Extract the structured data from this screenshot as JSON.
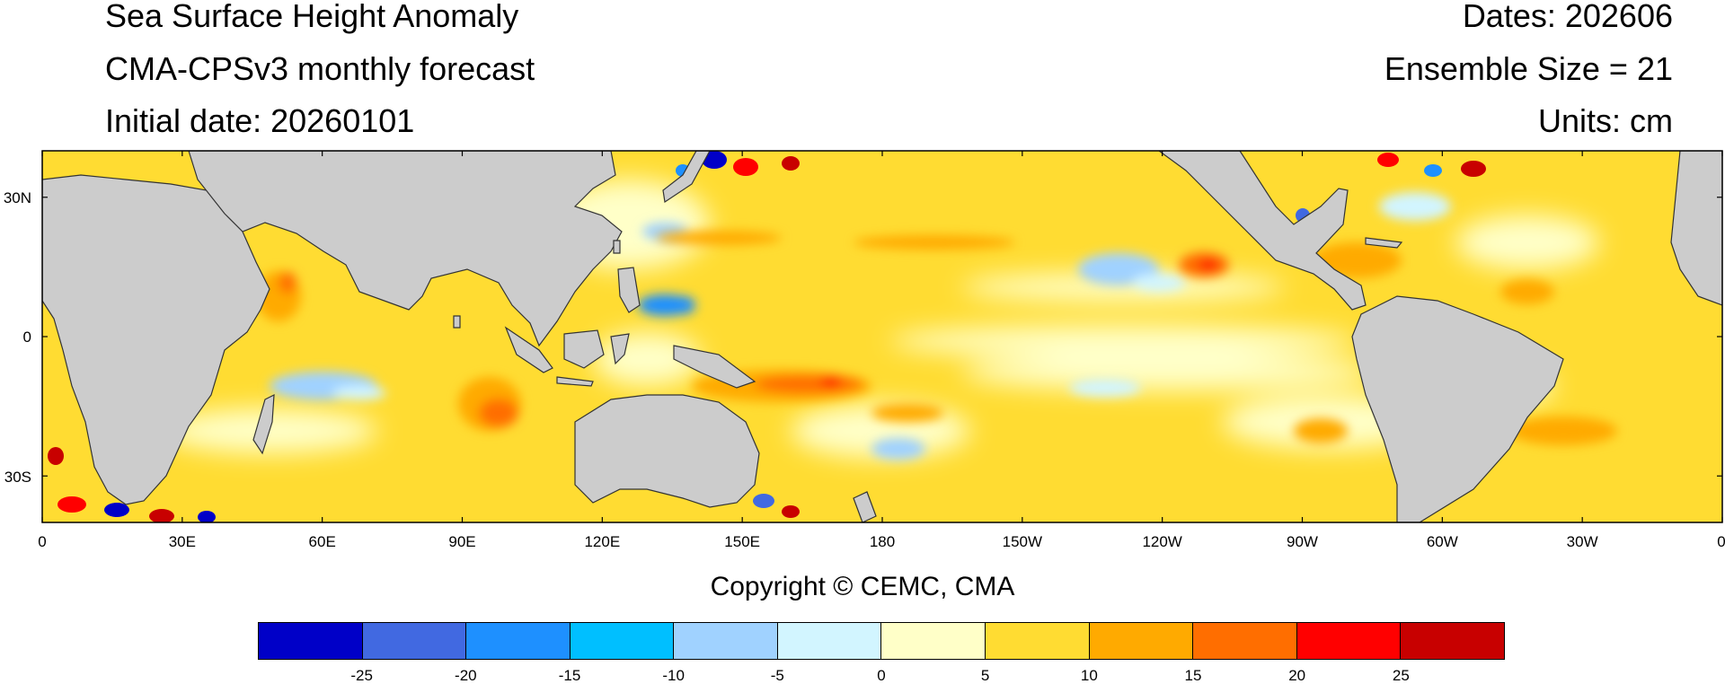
{
  "header": {
    "title": "Sea Surface Height Anomaly",
    "model": "CMA-CPSv3 monthly forecast",
    "initial_date": "Initial date: 20260101",
    "dates": "Dates: 202606",
    "ensemble": "Ensemble Size = 21",
    "units": "Units: cm"
  },
  "map": {
    "projection": "cylindrical equidistant",
    "lon_range": [
      0,
      360
    ],
    "lat_range": [
      -40,
      40
    ],
    "land_color": "#cccccc",
    "lat_labels": [
      "30N",
      "0",
      "30S"
    ],
    "lon_labels": [
      "0",
      "30E",
      "60E",
      "90E",
      "120E",
      "150E",
      "180",
      "150W",
      "120W",
      "90W",
      "60W",
      "30W",
      "0"
    ],
    "anomaly_field": {
      "dominant_level": "5 to 10",
      "features": [
        {
          "region": "tropical western/central Pacific band near 10S",
          "level": "15 to 20"
        },
        {
          "region": "eastern Indian Ocean near 15S",
          "level": "15 to 20"
        },
        {
          "region": "southern Indian Ocean near 10S, 60E-80E",
          "level": "-5 to 0"
        },
        {
          "region": "north-central Pacific near 15N, 135W",
          "level": "-5 to 0"
        },
        {
          "region": "eastern equatorial Pacific",
          "level": "0 to 5"
        },
        {
          "region": "Kuroshio extension near 40N, 145E",
          "level": "mixed -25 to 25"
        },
        {
          "region": "Gulf Stream near 40N, 60W",
          "level": "mixed -25 to 25"
        },
        {
          "region": "Agulhas region near 40S, 20E",
          "level": "mixed -25 to 25"
        }
      ]
    }
  },
  "copyright": "Copyright © CEMC, CMA",
  "colorbar": {
    "colors": [
      "#0000c8",
      "#4169e1",
      "#1e90ff",
      "#00bfff",
      "#a0d2ff",
      "#d2f5ff",
      "#ffffc8",
      "#ffdc32",
      "#ffaa00",
      "#ff6e00",
      "#ff0000",
      "#c80000"
    ],
    "labels": [
      "-25",
      "-20",
      "-15",
      "-10",
      "-5",
      "0",
      "5",
      "10",
      "15",
      "20",
      "25"
    ]
  }
}
